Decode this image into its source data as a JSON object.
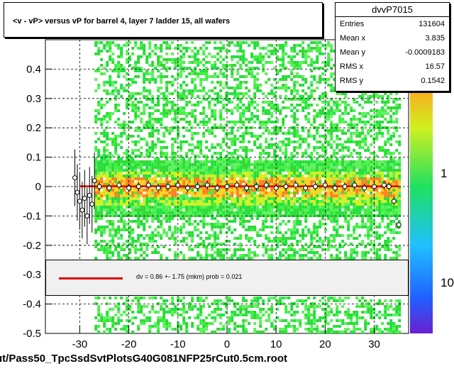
{
  "chart_data": {
    "type": "scatter",
    "title": "<v - vP>       versus   vP for barrel 4, layer 7 ladder 15, all wafers",
    "xlim": [
      -37,
      37
    ],
    "ylim": [
      -0.5,
      0.5
    ],
    "x_ticks": [
      -30,
      -20,
      -10,
      0,
      10,
      20,
      30
    ],
    "y_ticks": [
      -0.5,
      -0.4,
      -0.3,
      -0.2,
      -0.1,
      0,
      0.1,
      0.2,
      0.3,
      0.4
    ],
    "y_tick_labels": [
      "-0.5",
      "-0.4",
      "-0.3",
      "-0.2",
      "-0.1",
      "0",
      "0.1",
      "0.2",
      "0.3",
      "0.4"
    ],
    "x_tick_labels": [
      "-30",
      "-20",
      "-10",
      "0",
      "10",
      "20",
      "30"
    ],
    "grid": true,
    "colorbar": {
      "scale": "log",
      "labels": [
        "1",
        "10"
      ]
    },
    "fit_line": {
      "color": "#e00000",
      "y": 0.0009,
      "x_range": [
        -30,
        35
      ]
    },
    "profile_points": {
      "x": [
        -31,
        -30.5,
        -30,
        -29.5,
        -29,
        -28.5,
        -28,
        -27.5,
        -27,
        -26,
        -24,
        -22,
        -20,
        -18,
        -16,
        -14,
        -12,
        -10,
        -8,
        -6,
        -4,
        -2,
        0,
        2,
        4,
        6,
        8,
        10,
        12,
        14,
        16,
        18,
        20,
        22,
        24,
        26,
        28,
        30,
        32,
        33,
        34,
        35
      ],
      "y": [
        0.03,
        -0.02,
        -0.05,
        -0.08,
        -0.04,
        -0.1,
        -0.03,
        -0.06,
        0.02,
        0.0,
        -0.005,
        0.005,
        -0.005,
        0.0,
        0.005,
        -0.005,
        0.0,
        0.005,
        -0.005,
        0.0,
        0.005,
        -0.005,
        0.0,
        0.005,
        -0.005,
        0.0,
        0.005,
        -0.005,
        0.0,
        0.005,
        -0.005,
        0.0,
        0.005,
        -0.005,
        0.0,
        0.005,
        -0.005,
        0.0,
        0.005,
        0.0,
        -0.05,
        -0.13
      ]
    }
  },
  "stats_box": {
    "title": "dvvP7015",
    "rows": [
      {
        "label": "Entries",
        "value": "131604"
      },
      {
        "label": "Mean x",
        "value": "3.835"
      },
      {
        "label": "Mean y",
        "value": "-0.0009183"
      },
      {
        "label": "RMS x",
        "value": "16.57"
      },
      {
        "label": "RMS y",
        "value": "0.1542"
      }
    ]
  },
  "legend": {
    "text": "dv =    0.86 +-  1.75 (mkm) prob = 0.021"
  },
  "footer": {
    "filename": "ut/Pass50_TpcSsdSvtPlotsG40G081NFP25rCut0.5cm.root"
  }
}
